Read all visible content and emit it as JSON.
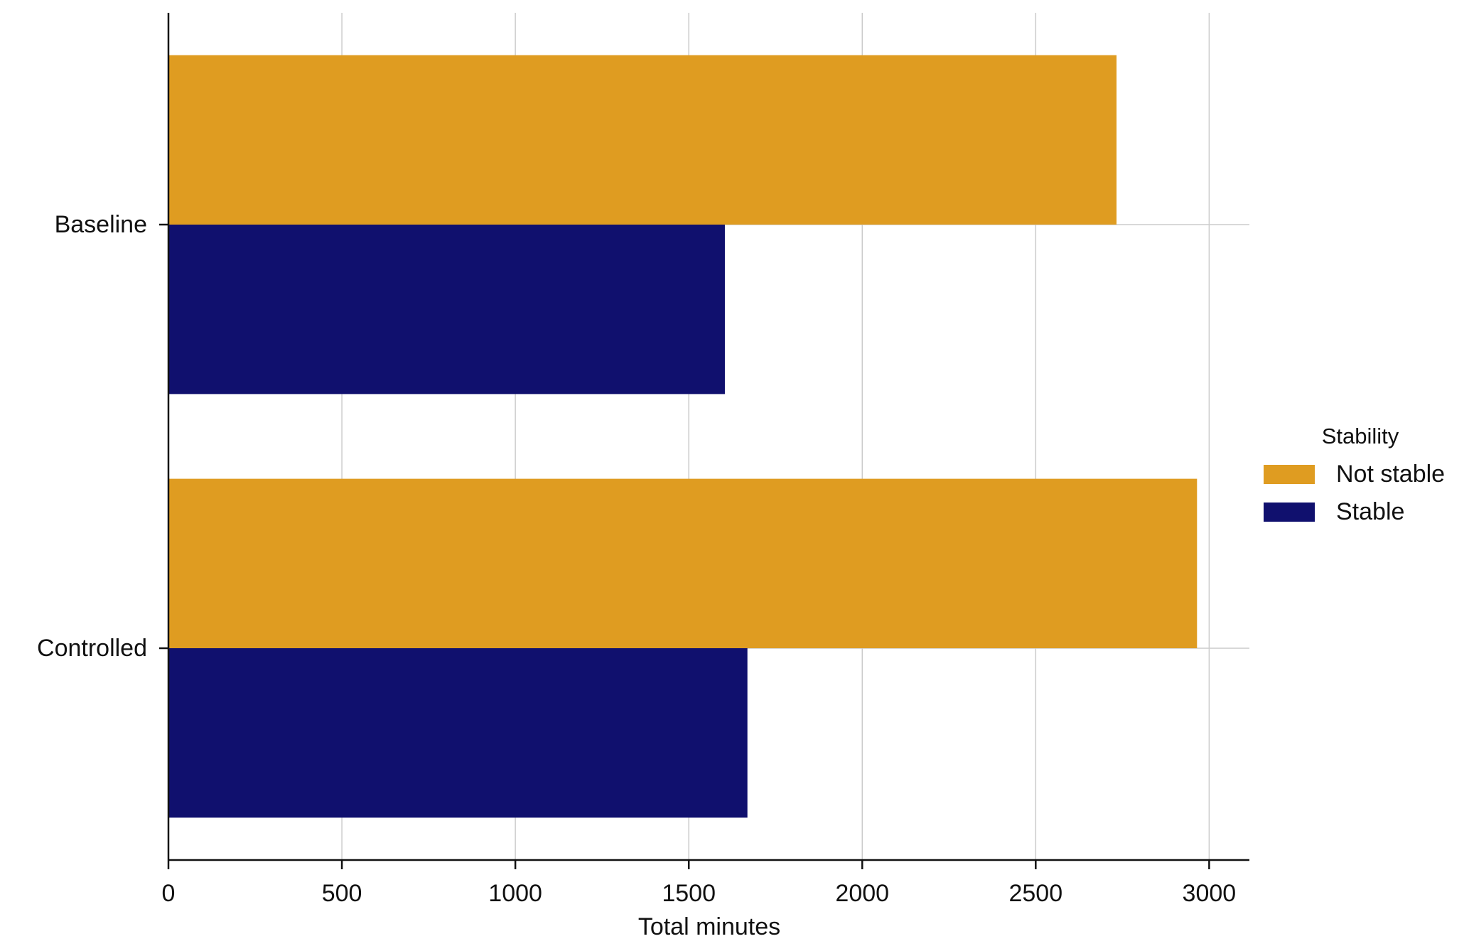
{
  "chart_data": {
    "type": "barh",
    "x_label": "Total minutes",
    "categories": [
      "Baseline",
      "Controlled"
    ],
    "series": [
      {
        "name": "Not stable",
        "color": "#df9c21",
        "values": [
          2733,
          2965
        ]
      },
      {
        "name": "Stable",
        "color": "#10106e",
        "values": [
          1604,
          1669
        ]
      }
    ],
    "xlim": [
      0,
      3116
    ],
    "xticks": [
      0,
      500,
      1000,
      1500,
      2000,
      2500,
      3000
    ],
    "grid": true,
    "legend": "right",
    "legend_title": "Stability"
  }
}
